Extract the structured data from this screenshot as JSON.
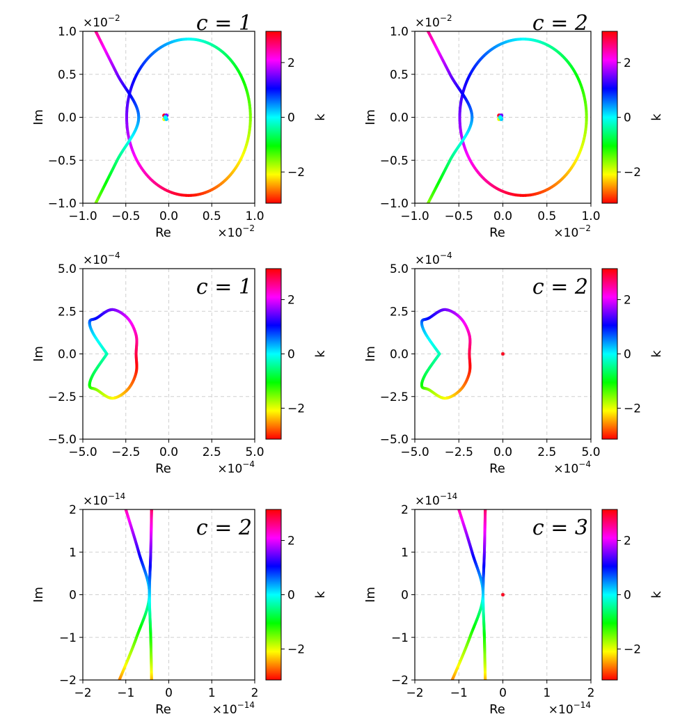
{
  "chart_data": [
    {
      "type": "scatter",
      "annotation": "c = 1",
      "xlabel": "Re",
      "ylabel": "Im",
      "xlim": [
        -1.0,
        1.0
      ],
      "ylim": [
        -1.0,
        1.0
      ],
      "xticks": [
        "−1.0",
        "−0.5",
        "0.0",
        "0.5",
        "1.0"
      ],
      "yticks": [
        "−1.0",
        "−0.5",
        "0.0",
        "0.5",
        "1.0"
      ],
      "x_scale_label": "×10",
      "x_scale_exp": "−2",
      "y_scale_label": "×10",
      "y_scale_exp": "−2",
      "grid": true,
      "colorbar": {
        "label": "k",
        "ticks": [
          "2",
          "0",
          "−2"
        ],
        "range": [
          -3.1416,
          3.1416
        ]
      },
      "curves": [
        {
          "kind": "ellipse",
          "cx": 0.23,
          "cy": 0.0,
          "rx": 0.72,
          "ry": 0.91,
          "k_start": -3.1416,
          "k_end": 3.1416
        },
        {
          "kind": "param_curve",
          "points": [
            [
              -0.85,
              1.0
            ],
            [
              -0.6,
              0.5
            ],
            [
              -0.35,
              0.0
            ],
            [
              -0.6,
              -0.5
            ],
            [
              -0.85,
              -1.0
            ]
          ],
          "k_start": 2.6,
          "k_end": -1.6
        }
      ],
      "points": [
        {
          "x": -0.04,
          "y": 0.0,
          "k": 0.0
        }
      ]
    },
    {
      "type": "scatter",
      "annotation": "c = 2",
      "xlabel": "Re",
      "ylabel": "Im",
      "xlim": [
        -1.0,
        1.0
      ],
      "ylim": [
        -1.0,
        1.0
      ],
      "xticks": [
        "−1.0",
        "−0.5",
        "0.0",
        "0.5",
        "1.0"
      ],
      "yticks": [
        "−1.0",
        "−0.5",
        "0.0",
        "0.5",
        "1.0"
      ],
      "x_scale_label": "×10",
      "x_scale_exp": "−2",
      "y_scale_label": "×10",
      "y_scale_exp": "−2",
      "grid": true,
      "colorbar": {
        "label": "k",
        "ticks": [
          "2",
          "0",
          "−2"
        ],
        "range": [
          -3.1416,
          3.1416
        ]
      },
      "curves": [
        {
          "kind": "ellipse",
          "cx": 0.23,
          "cy": 0.0,
          "rx": 0.72,
          "ry": 0.91,
          "k_start": -3.1416,
          "k_end": 3.1416
        },
        {
          "kind": "param_curve",
          "points": [
            [
              -0.85,
              1.0
            ],
            [
              -0.6,
              0.5
            ],
            [
              -0.35,
              0.0
            ],
            [
              -0.6,
              -0.5
            ],
            [
              -0.85,
              -1.0
            ]
          ],
          "k_start": 2.6,
          "k_end": -1.6
        }
      ],
      "points": [
        {
          "x": -0.03,
          "y": 0.0,
          "k": 0.0
        }
      ]
    },
    {
      "type": "scatter",
      "annotation": "c = 1",
      "xlabel": "Re",
      "ylabel": "Im",
      "xlim": [
        -5.0,
        5.0
      ],
      "ylim": [
        -5.0,
        5.0
      ],
      "xticks": [
        "−5.0",
        "−2.5",
        "0.0",
        "2.5",
        "5.0"
      ],
      "yticks": [
        "−5.0",
        "−2.5",
        "0.0",
        "2.5",
        "5.0"
      ],
      "x_scale_label": "×10",
      "x_scale_exp": "−4",
      "y_scale_label": "×10",
      "y_scale_exp": "−4",
      "grid": true,
      "colorbar": {
        "label": "k",
        "ticks": [
          "2",
          "0",
          "−2"
        ],
        "range": [
          -3.1416,
          3.1416
        ]
      },
      "curves": [
        {
          "kind": "param_curve",
          "closed": true,
          "points": [
            [
              -3.6,
              0.0
            ],
            [
              -4.4,
              1.2
            ],
            [
              -4.6,
              1.9
            ],
            [
              -4.2,
              2.1
            ],
            [
              -3.3,
              2.6
            ],
            [
              -2.4,
              2.1
            ],
            [
              -1.9,
              1.1
            ],
            [
              -1.9,
              0.0
            ],
            [
              -1.9,
              -1.1
            ],
            [
              -2.4,
              -2.1
            ],
            [
              -3.3,
              -2.6
            ],
            [
              -4.2,
              -2.1
            ],
            [
              -4.6,
              -1.9
            ],
            [
              -4.4,
              -1.2
            ],
            [
              -3.6,
              0.0
            ]
          ],
          "k_start": -0.3,
          "k_end": 6.0
        }
      ],
      "points": []
    },
    {
      "type": "scatter",
      "annotation": "c = 2",
      "xlabel": "Re",
      "ylabel": "Im",
      "xlim": [
        -5.0,
        5.0
      ],
      "ylim": [
        -5.0,
        5.0
      ],
      "xticks": [
        "−5.0",
        "−2.5",
        "0.0",
        "2.5",
        "5.0"
      ],
      "yticks": [
        "−5.0",
        "−2.5",
        "0.0",
        "2.5",
        "5.0"
      ],
      "x_scale_label": "×10",
      "x_scale_exp": "−4",
      "y_scale_label": "×10",
      "y_scale_exp": "−4",
      "grid": true,
      "colorbar": {
        "label": "k",
        "ticks": [
          "2",
          "0",
          "−2"
        ],
        "range": [
          -3.1416,
          3.1416
        ]
      },
      "curves": [
        {
          "kind": "param_curve",
          "closed": true,
          "points": [
            [
              -3.6,
              0.0
            ],
            [
              -4.4,
              1.2
            ],
            [
              -4.6,
              1.9
            ],
            [
              -4.2,
              2.1
            ],
            [
              -3.3,
              2.6
            ],
            [
              -2.4,
              2.1
            ],
            [
              -1.9,
              1.1
            ],
            [
              -1.9,
              0.0
            ],
            [
              -1.9,
              -1.1
            ],
            [
              -2.4,
              -2.1
            ],
            [
              -3.3,
              -2.6
            ],
            [
              -4.2,
              -2.1
            ],
            [
              -4.6,
              -1.9
            ],
            [
              -4.4,
              -1.2
            ],
            [
              -3.6,
              0.0
            ]
          ],
          "k_start": -0.3,
          "k_end": 6.0
        }
      ],
      "points": [
        {
          "x": 0.0,
          "y": 0.0,
          "k": 3.0
        }
      ]
    },
    {
      "type": "scatter",
      "annotation": "c = 2",
      "xlabel": "Re",
      "ylabel": "Im",
      "xlim": [
        -2,
        2
      ],
      "ylim": [
        -2,
        2
      ],
      "xticks": [
        "−2",
        "−1",
        "0",
        "1",
        "2"
      ],
      "yticks": [
        "−2",
        "−1",
        "0",
        "1",
        "2"
      ],
      "x_scale_label": "×10",
      "x_scale_exp": "−14",
      "y_scale_label": "×10",
      "y_scale_exp": "−14",
      "grid": true,
      "colorbar": {
        "label": "k",
        "ticks": [
          "2",
          "0",
          "−2"
        ],
        "range": [
          -3.1416,
          3.1416
        ]
      },
      "curves": [
        {
          "kind": "param_curve",
          "points": [
            [
              -1.0,
              2.0
            ],
            [
              -0.7,
              1.0
            ],
            [
              -0.45,
              0.0
            ],
            [
              -0.75,
              -1.0
            ],
            [
              -1.15,
              -2.0
            ]
          ],
          "k_start": 2.5,
          "k_end": -2.6
        },
        {
          "kind": "param_curve",
          "points": [
            [
              -0.4,
              2.0
            ],
            [
              -0.42,
              1.0
            ],
            [
              -0.45,
              0.0
            ],
            [
              -0.42,
              -1.0
            ],
            [
              -0.4,
              -2.0
            ]
          ],
          "k_start": 2.8,
          "k_end": -2.4
        }
      ],
      "points": []
    },
    {
      "type": "scatter",
      "annotation": "c = 3",
      "xlabel": "Re",
      "ylabel": "Im",
      "xlim": [
        -2,
        2
      ],
      "ylim": [
        -2,
        2
      ],
      "xticks": [
        "−2",
        "−1",
        "0",
        "1",
        "2"
      ],
      "yticks": [
        "−2",
        "−1",
        "0",
        "1",
        "2"
      ],
      "x_scale_label": "×10",
      "x_scale_exp": "−14",
      "y_scale_label": "×10",
      "y_scale_exp": "−14",
      "grid": true,
      "colorbar": {
        "label": "k",
        "ticks": [
          "2",
          "0",
          "−2"
        ],
        "range": [
          -3.1416,
          3.1416
        ]
      },
      "curves": [
        {
          "kind": "param_curve",
          "points": [
            [
              -1.0,
              2.0
            ],
            [
              -0.7,
              1.0
            ],
            [
              -0.45,
              0.0
            ],
            [
              -0.75,
              -1.0
            ],
            [
              -1.15,
              -2.0
            ]
          ],
          "k_start": 2.5,
          "k_end": -2.6
        },
        {
          "kind": "param_curve",
          "points": [
            [
              -0.4,
              2.0
            ],
            [
              -0.42,
              1.0
            ],
            [
              -0.45,
              0.0
            ],
            [
              -0.42,
              -1.0
            ],
            [
              -0.4,
              -2.0
            ]
          ],
          "k_start": 2.8,
          "k_end": -2.4
        }
      ],
      "points": [
        {
          "x": 0.0,
          "y": 0.0,
          "k": 3.0
        }
      ]
    }
  ]
}
